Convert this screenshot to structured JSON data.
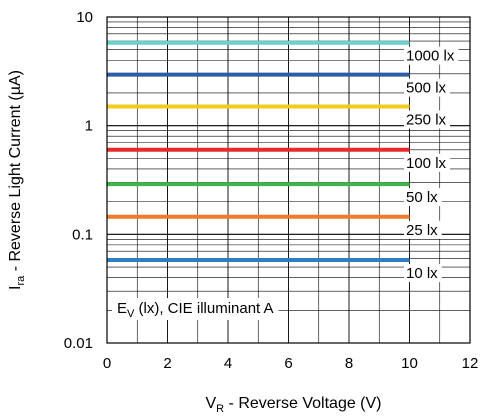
{
  "chart_data": {
    "type": "line",
    "xlabel": {
      "main": "V",
      "sub": "R",
      "rest": " - Reverse Voltage (V)"
    },
    "ylabel": {
      "main": "I",
      "sub": "ra",
      "rest": " - Reverse Light Current (µA)"
    },
    "xlim": [
      0,
      12
    ],
    "ylim": [
      0.01,
      10
    ],
    "y_scale": "log",
    "grid": true,
    "x_ticks": [
      "0",
      "2",
      "4",
      "6",
      "8",
      "10",
      "12"
    ],
    "y_ticks": [
      "0.01",
      "0.1",
      "1",
      "10"
    ],
    "annotation": {
      "main": "E",
      "sub": "V",
      "rest": " (lx), CIE illuminant A"
    },
    "series": [
      {
        "name": "1000 lx",
        "color": "#6ccfc9",
        "x": [
          0,
          10
        ],
        "y": [
          5.8,
          5.8
        ]
      },
      {
        "name": "500 lx",
        "color": "#2e5ba8",
        "x": [
          0,
          10
        ],
        "y": [
          2.95,
          2.95
        ]
      },
      {
        "name": "250 lx",
        "color": "#f2cc1c",
        "x": [
          0,
          10
        ],
        "y": [
          1.5,
          1.5
        ]
      },
      {
        "name": "100 lx",
        "color": "#e82a2a",
        "x": [
          0,
          10
        ],
        "y": [
          0.6,
          0.6
        ]
      },
      {
        "name": "50 lx",
        "color": "#3fb54a",
        "x": [
          0,
          10
        ],
        "y": [
          0.29,
          0.29
        ]
      },
      {
        "name": "25 lx",
        "color": "#f07c2a",
        "x": [
          0,
          10
        ],
        "y": [
          0.145,
          0.145
        ]
      },
      {
        "name": "10 lx",
        "color": "#2f7ec1",
        "x": [
          0,
          10
        ],
        "y": [
          0.058,
          0.058
        ]
      }
    ]
  }
}
